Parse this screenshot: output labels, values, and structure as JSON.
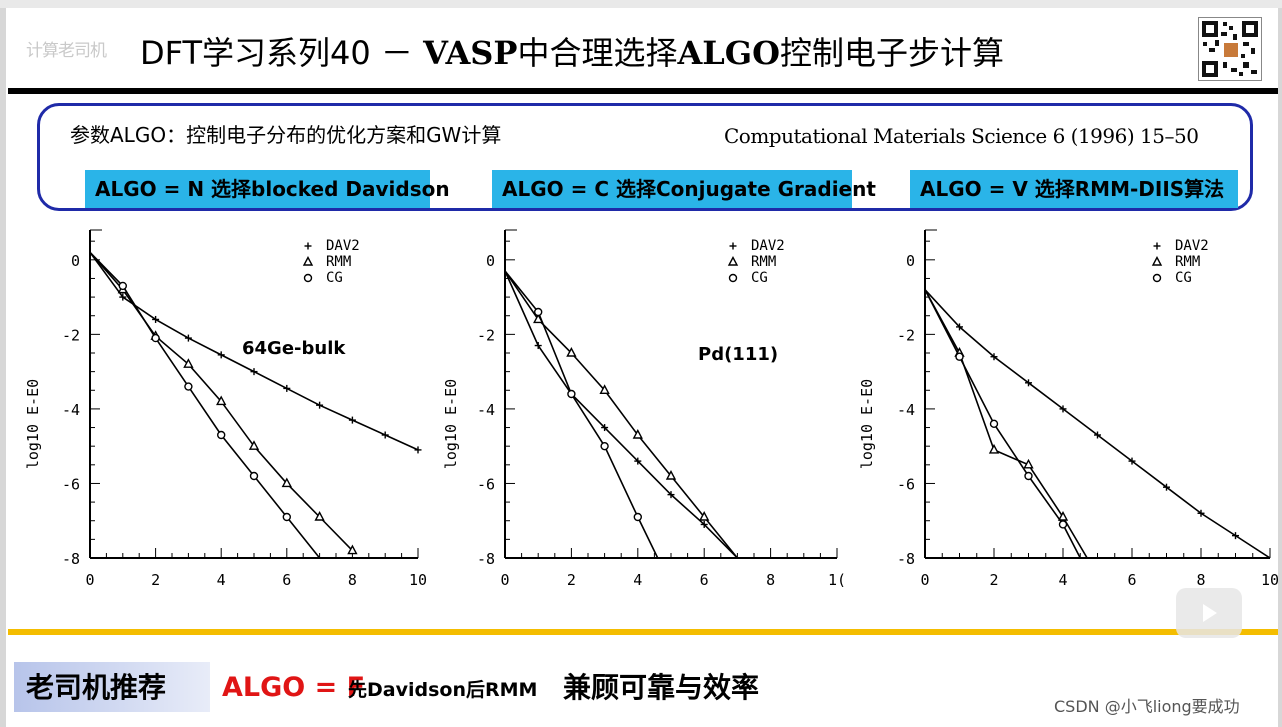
{
  "slide": {
    "faint_label": "计算老司机",
    "title_prefix": "DFT学习系列40 － ",
    "title_bold_1": "VASP",
    "title_mid": "中合理选择",
    "title_bold_2": "ALGO",
    "title_suffix": "控制电子步计算"
  },
  "info": {
    "param_desc": "参数ALGO：控制电子分布的优化方案和GW计算",
    "citation": "Computational Materials Science 6 (1996) 15–50",
    "algo_n": "ALGO = N 选择blocked Davidson",
    "algo_c": "ALGO = C 选择Conjugate Gradient",
    "algo_v": "ALGO = V 选择RMM-DIIS算法",
    "accent_color": "#2ab4e8",
    "border_color": "#1f2aa8"
  },
  "chart_data": [
    {
      "type": "line",
      "annotation": "64Ge-bulk",
      "ylabel": "log10 E-E0",
      "xlim": [
        0,
        10
      ],
      "ylim": [
        -8,
        0.8
      ],
      "xticks": [
        "0",
        "2",
        "4",
        "6",
        "8",
        "10"
      ],
      "yticks": [
        "0",
        "-2",
        "-4",
        "-6",
        "-8"
      ],
      "legend": [
        "DAV2",
        "RMM",
        "CG"
      ],
      "series": [
        {
          "name": "DAV2",
          "marker": "plus",
          "x": [
            0,
            1,
            2,
            3,
            4,
            5,
            6,
            7,
            8,
            9,
            10
          ],
          "y": [
            0.2,
            -1.0,
            -1.6,
            -2.1,
            -2.55,
            -3.0,
            -3.45,
            -3.9,
            -4.3,
            -4.7,
            -5.1
          ]
        },
        {
          "name": "RMM",
          "marker": "triangle",
          "x": [
            0,
            1,
            2,
            3,
            4,
            5,
            6,
            7,
            8
          ],
          "y": [
            0.2,
            -0.8,
            -2.05,
            -2.8,
            -3.8,
            -5.0,
            -6.0,
            -6.9,
            -7.8
          ]
        },
        {
          "name": "CG",
          "marker": "circle",
          "x": [
            0,
            1,
            2,
            3,
            4,
            5,
            6,
            7
          ],
          "y": [
            0.2,
            -0.7,
            -2.1,
            -3.4,
            -4.7,
            -5.8,
            -6.9,
            -8.0
          ]
        }
      ]
    },
    {
      "type": "line",
      "annotation": "Pd(111)",
      "ylabel": "log10 E-E0",
      "xlim": [
        0,
        10
      ],
      "ylim": [
        -8,
        0.8
      ],
      "xticks": [
        "0",
        "2",
        "4",
        "6",
        "8",
        "1("
      ],
      "yticks": [
        "0",
        "-2",
        "-4",
        "-6",
        "-8"
      ],
      "legend": [
        "DAV2",
        "RMM",
        "CG"
      ],
      "series": [
        {
          "name": "DAV2",
          "marker": "plus",
          "x": [
            0,
            1,
            2,
            3,
            4,
            5,
            6,
            7
          ],
          "y": [
            -0.3,
            -2.3,
            -3.6,
            -4.5,
            -5.4,
            -6.3,
            -7.1,
            -8.0
          ]
        },
        {
          "name": "RMM",
          "marker": "triangle",
          "x": [
            0,
            1,
            2,
            3,
            4,
            5,
            6,
            7
          ],
          "y": [
            -0.3,
            -1.6,
            -2.5,
            -3.5,
            -4.7,
            -5.8,
            -6.9,
            -8.0
          ]
        },
        {
          "name": "CG",
          "marker": "circle",
          "x": [
            0,
            1,
            2,
            3,
            4,
            4.6
          ],
          "y": [
            -0.3,
            -1.4,
            -3.6,
            -5.0,
            -6.9,
            -8.0
          ]
        }
      ]
    },
    {
      "type": "line",
      "annotation": "",
      "ylabel": "log10 E-E0",
      "xlim": [
        0,
        10
      ],
      "ylim": [
        -8,
        0.8
      ],
      "xticks": [
        "0",
        "2",
        "4",
        "6",
        "8",
        "10"
      ],
      "yticks": [
        "0",
        "-2",
        "-4",
        "-6",
        "-8"
      ],
      "legend": [
        "DAV2",
        "RMM",
        "CG"
      ],
      "series": [
        {
          "name": "DAV2",
          "marker": "plus",
          "x": [
            0,
            1,
            2,
            3,
            4,
            5,
            6,
            7,
            8,
            9,
            10
          ],
          "y": [
            -0.8,
            -1.8,
            -2.6,
            -3.3,
            -4.0,
            -4.7,
            -5.4,
            -6.1,
            -6.8,
            -7.4,
            -8.0
          ]
        },
        {
          "name": "RMM",
          "marker": "triangle",
          "x": [
            0,
            1,
            2,
            3,
            4,
            4.7
          ],
          "y": [
            -0.8,
            -2.5,
            -5.1,
            -5.5,
            -6.9,
            -8.0
          ]
        },
        {
          "name": "CG",
          "marker": "circle",
          "x": [
            0,
            1,
            2,
            3,
            4,
            4.5
          ],
          "y": [
            -0.8,
            -2.6,
            -4.4,
            -5.8,
            -7.1,
            -8.0
          ]
        }
      ]
    }
  ],
  "recommendation": {
    "label": "老司机推荐",
    "algo": "ALGO = F",
    "desc": "先Davidson后RMM",
    "benefit": "兼顾可靠与效率"
  },
  "watermark": "CSDN @小飞liong要成功",
  "colors": {
    "gold": "#f4bd00",
    "red": "#e01515"
  }
}
